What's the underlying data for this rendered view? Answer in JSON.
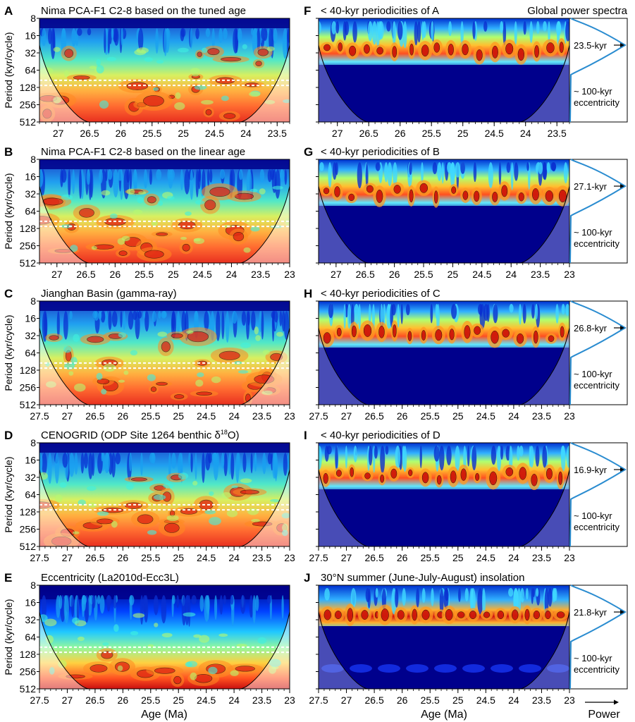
{
  "chart_data": [
    {
      "type": "heatmap",
      "panel": "A",
      "title": "Nima PCA-F1 C2-8 based on the tuned age",
      "ylabel": "Period (kyr/cycle)",
      "yticks": [
        8,
        16,
        32,
        64,
        128,
        256,
        512
      ],
      "xticks": [
        27,
        26.5,
        26,
        25.5,
        25,
        24.5,
        24,
        23.5
      ],
      "xlim": [
        27.3,
        23.3
      ]
    },
    {
      "type": "heatmap",
      "panel": "B",
      "title": "Nima PCA-F1 C2-8 based on the linear age",
      "ylabel": "Period (kyr/cycle)",
      "yticks": [
        8,
        16,
        32,
        64,
        128,
        256,
        512
      ],
      "xticks": [
        27,
        26.5,
        26,
        25.5,
        25,
        24.5,
        24,
        23.5,
        23
      ],
      "xlim": [
        27.3,
        23
      ]
    },
    {
      "type": "heatmap",
      "panel": "C",
      "title": "Jianghan Basin (gamma-ray)",
      "ylabel": "Period (kyr/cycle)",
      "yticks": [
        8,
        16,
        32,
        64,
        128,
        256,
        512
      ],
      "xticks": [
        27.5,
        27,
        26.5,
        26,
        25.5,
        25,
        24.5,
        24,
        23.5,
        23
      ],
      "xlim": [
        27.5,
        23
      ]
    },
    {
      "type": "heatmap",
      "panel": "D",
      "title": "CENOGRID (ODP Site 1264 benthic δ",
      "title_sup": "18",
      "title_end": "O)",
      "ylabel": "Period (kyr/cycle)",
      "yticks": [
        8,
        16,
        32,
        64,
        128,
        256,
        512
      ],
      "xticks": [
        27.5,
        27,
        26.5,
        26,
        25.5,
        25,
        24.5,
        24,
        23.5,
        23
      ],
      "xlim": [
        27.5,
        23
      ]
    },
    {
      "type": "heatmap",
      "panel": "E",
      "title": "Eccentricity (La2010d-Ecc3L)",
      "ylabel": "Period (kyr/cycle)",
      "yticks": [
        8,
        16,
        32,
        64,
        128,
        256,
        512
      ],
      "xticks": [
        27.5,
        27,
        26.5,
        26,
        25.5,
        25,
        24.5,
        24,
        23.5,
        23
      ],
      "xlim": [
        27.5,
        23
      ],
      "xlabel": "Age (Ma)"
    },
    {
      "type": "heatmap",
      "panel": "F",
      "title": "< 40-kyr periodicities of A",
      "xticks": [
        27,
        26.5,
        26,
        25.5,
        25,
        24.5,
        24,
        23.5
      ],
      "xlim": [
        27.3,
        23.3
      ],
      "spectrum_peak_label": "23.5-kyr",
      "ecc_line1": "~ 100-kyr",
      "ecc_line2": "eccentricity"
    },
    {
      "type": "heatmap",
      "panel": "G",
      "title": "< 40-kyr periodicities of B",
      "xticks": [
        27,
        26.5,
        26,
        25.5,
        25,
        24.5,
        24,
        23.5,
        23
      ],
      "xlim": [
        27.3,
        23
      ],
      "spectrum_peak_label": "27.1-kyr",
      "ecc_line1": "~ 100-kyr",
      "ecc_line2": "eccentricity"
    },
    {
      "type": "heatmap",
      "panel": "H",
      "title": "< 40-kyr periodicities of C",
      "xticks": [
        27.5,
        27,
        26.5,
        26,
        25.5,
        25,
        24.5,
        24,
        23.5,
        23
      ],
      "xlim": [
        27.5,
        23
      ],
      "spectrum_peak_label": "26.8-kyr",
      "ecc_line1": "~ 100-kyr",
      "ecc_line2": "eccentricity"
    },
    {
      "type": "heatmap",
      "panel": "I",
      "title": "< 40-kyr periodicities of D",
      "xticks": [
        27.5,
        27,
        26.5,
        26,
        25.5,
        25,
        24.5,
        24,
        23.5,
        23
      ],
      "xlim": [
        27.5,
        23
      ],
      "spectrum_peak_label": "16.9-kyr",
      "ecc_line1": "~ 100-kyr",
      "ecc_line2": "eccentricity"
    },
    {
      "type": "heatmap",
      "panel": "J",
      "title": "30°N summer (June-July-August) insolation",
      "xticks": [
        27.5,
        27,
        26.5,
        26,
        25.5,
        25,
        24.5,
        24,
        23.5,
        23
      ],
      "xlim": [
        27.5,
        23
      ],
      "xlabel": "Age (Ma)",
      "spectrum_peak_label": "21.8-kyr",
      "ecc_line1": "~ 100-kyr",
      "ecc_line2": "eccentricity"
    }
  ],
  "spectra_title": "Global power spectra",
  "power_label": "Power",
  "colors": {
    "low": "#00007f",
    "mid": "#00c8ff",
    "mid2": "#b4ff50",
    "high": "#ffc800",
    "peak": "#c80000"
  }
}
